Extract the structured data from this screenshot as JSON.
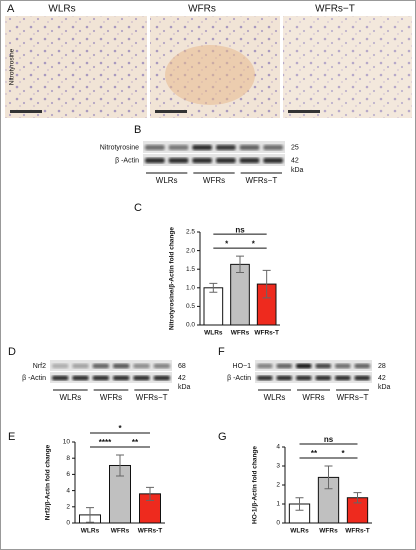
{
  "panels": {
    "histology": {
      "label": "A",
      "side_label": "Nitrotyrosine",
      "titles": [
        "WLRs",
        "WFRs",
        "WFRs−T"
      ]
    },
    "blots": [
      {
        "label": "B",
        "rows": [
          {
            "name": "Nitrotyrosine",
            "kda": "25"
          },
          {
            "name": "β -Actin",
            "kda": "42"
          }
        ],
        "unit": "kDa",
        "groups": [
          "WLRs",
          "WFRs",
          "WFRs−T"
        ]
      },
      {
        "label": "D",
        "rows": [
          {
            "name": "Nrf2",
            "kda": "68"
          },
          {
            "name": "β -Actin",
            "kda": "42"
          }
        ],
        "unit": "kDa",
        "groups": [
          "WLRs",
          "WFRs",
          "WFRs−T"
        ]
      },
      {
        "label": "F",
        "rows": [
          {
            "name": "HO−1",
            "kda": "28"
          },
          {
            "name": "β -Actin",
            "kda": "42"
          }
        ],
        "unit": "kDa",
        "groups": [
          "WLRs",
          "WFRs",
          "WFRs−T"
        ]
      }
    ]
  },
  "chart_data": [
    {
      "type": "bar",
      "label": "C",
      "y_label": "Nitrotyrosine/β-Actin fold change",
      "categories": [
        "WLRs",
        "WFRs",
        "WFRs-T"
      ],
      "values": [
        1.0,
        1.63,
        1.1
      ],
      "errors": [
        0.12,
        0.22,
        0.37
      ],
      "colors": [
        "#ffffff",
        "#c0c0c0",
        "#ee2a1e"
      ],
      "ylim": [
        0,
        2.5
      ],
      "yticks": [
        {
          "value": 0,
          "label": "0.0"
        },
        {
          "value": 0.5,
          "label": "0.5"
        },
        {
          "value": 1,
          "label": "1.0"
        },
        {
          "value": 1.5,
          "label": "1.5"
        },
        {
          "value": 2,
          "label": "2.0"
        },
        {
          "value": 2.5,
          "label": "2.5"
        }
      ],
      "annotations": [
        {
          "text": "*",
          "between": [
            "WLRs",
            "WFRs"
          ]
        },
        {
          "text": "*",
          "between": [
            "WFRs",
            "WFRs-T"
          ]
        },
        {
          "text": "ns",
          "between": [
            "WLRs",
            "WFRs-T"
          ]
        }
      ]
    },
    {
      "type": "bar",
      "label": "E",
      "y_label": "Nrf2/β-Actin fold change",
      "categories": [
        "WLRs",
        "WFRs",
        "WFRs-T"
      ],
      "values": [
        1.0,
        7.1,
        3.6
      ],
      "errors": [
        0.9,
        1.3,
        0.8
      ],
      "colors": [
        "#ffffff",
        "#c0c0c0",
        "#ee2a1e"
      ],
      "ylim": [
        0,
        10
      ],
      "yticks": [
        0,
        2,
        4,
        6,
        8,
        10
      ],
      "annotations": [
        {
          "text": "****",
          "between": [
            "WLRs",
            "WFRs"
          ]
        },
        {
          "text": "**",
          "between": [
            "WFRs",
            "WFRs-T"
          ]
        },
        {
          "text": "*",
          "between": [
            "WLRs",
            "WFRs-T"
          ]
        }
      ]
    },
    {
      "type": "bar",
      "label": "G",
      "y_label": "HO-1/β-Actin fold change",
      "categories": [
        "WLRs",
        "WFRs",
        "WFRs-T"
      ],
      "values": [
        1.0,
        2.4,
        1.33
      ],
      "errors": [
        0.33,
        0.6,
        0.27
      ],
      "colors": [
        "#ffffff",
        "#c0c0c0",
        "#ee2a1e"
      ],
      "ylim": [
        0,
        4
      ],
      "yticks": [
        0,
        1,
        2,
        3,
        4
      ],
      "annotations": [
        {
          "text": "**",
          "between": [
            "WLRs",
            "WFRs"
          ]
        },
        {
          "text": "*",
          "between": [
            "WFRs",
            "WFRs-T"
          ]
        },
        {
          "text": "ns",
          "between": [
            "WLRs",
            "WFRs-T"
          ]
        }
      ]
    }
  ]
}
